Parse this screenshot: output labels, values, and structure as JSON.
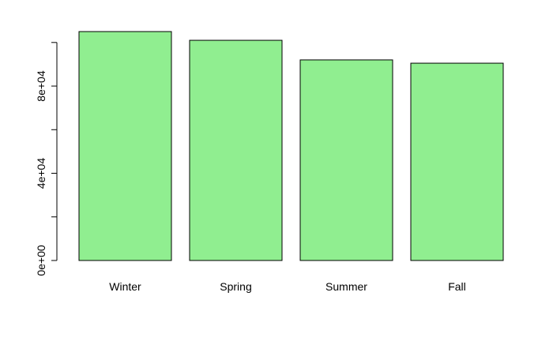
{
  "chart_data": {
    "type": "bar",
    "categories": [
      "Winter",
      "Spring",
      "Summer",
      "Fall"
    ],
    "values": [
      105000,
      101000,
      92000,
      90500
    ],
    "ylim": [
      0,
      105000
    ],
    "yticks": [
      0,
      20000,
      40000,
      60000,
      80000,
      100000
    ],
    "ytick_labels": [
      "0e+00",
      "",
      "4e+04",
      "",
      "8e+04",
      ""
    ],
    "title": "",
    "xlabel": "",
    "ylabel": "",
    "grid": false,
    "bar_color": "#90ee90",
    "bar_border_color": "#000000"
  }
}
